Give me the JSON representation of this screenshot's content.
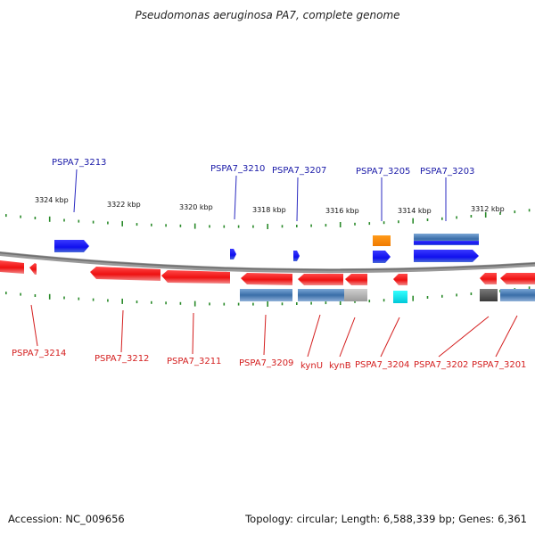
{
  "title": "Pseudomonas aeruginosa PA7, complete genome",
  "footer": {
    "accession": "Accession: NC_009656",
    "summary": "Topology: circular; Length: 6,588,339 bp; Genes: 6,361"
  },
  "colors": {
    "forward_gene": "#1010ee",
    "reverse_gene": "#ee1111",
    "backbone": "#8a8a8a",
    "ticks": "#2a8a2a",
    "top_label": "#1a1aa8",
    "bottom_label": "#d41e1e"
  },
  "scale_ticks": [
    {
      "label": "3324 kbp"
    },
    {
      "label": "3322 kbp"
    },
    {
      "label": "3320 kbp"
    },
    {
      "label": "3318 kbp"
    },
    {
      "label": "3316 kbp"
    },
    {
      "label": "3314 kbp"
    },
    {
      "label": "3312 kbp"
    }
  ],
  "top_labels": [
    {
      "text": "PSPA7_3213"
    },
    {
      "text": "PSPA7_3210"
    },
    {
      "text": "PSPA7_3207"
    },
    {
      "text": "PSPA7_3205"
    },
    {
      "text": "PSPA7_3203"
    }
  ],
  "bottom_labels": [
    {
      "text": "PSPA7_3214"
    },
    {
      "text": "PSPA7_3212"
    },
    {
      "text": "PSPA7_3211"
    },
    {
      "text": "PSPA7_3209"
    },
    {
      "text": "kynU"
    },
    {
      "text": "kynB"
    },
    {
      "text": "PSPA7_3204"
    },
    {
      "text": "PSPA7_3202"
    },
    {
      "text": "PSPA7_3201"
    }
  ]
}
